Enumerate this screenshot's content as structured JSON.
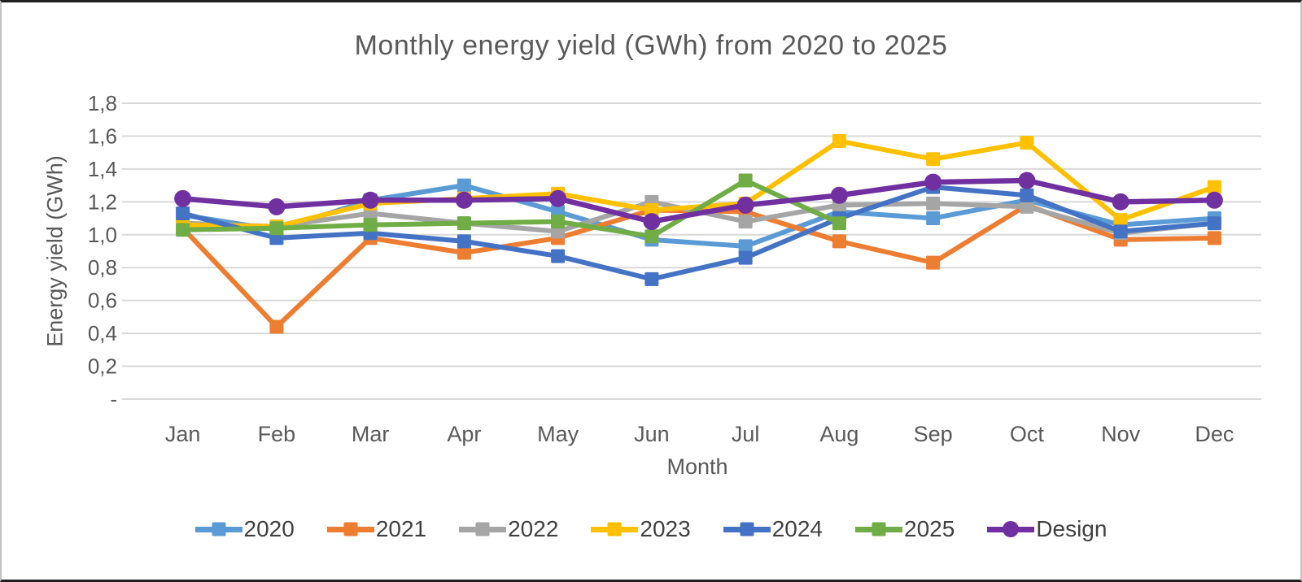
{
  "chart_data": {
    "type": "line",
    "title": "Monthly energy yield (GWh) from 2020 to 2025",
    "xlabel": "Month",
    "ylabel": "Energy yield (GWh)",
    "categories": [
      "Jan",
      "Feb",
      "Mar",
      "Apr",
      "May",
      "Jun",
      "Jul",
      "Aug",
      "Sep",
      "Oct",
      "Nov",
      "Dec"
    ],
    "ylim": [
      0,
      1.8
    ],
    "y_tick_values": [
      1.8,
      1.6,
      1.4,
      1.2,
      1.0,
      0.8,
      0.6,
      0.4,
      0.2,
      0
    ],
    "y_tick_labels": [
      "1,8",
      "1,6",
      "1,4",
      "1,2",
      "1,0",
      "0,8",
      "0,6",
      "0,4",
      "0,2",
      "-"
    ],
    "grid": "horizontal",
    "gridline_color": "#D9D9D9",
    "text_color": "#595959",
    "legend_position": "bottom",
    "series": [
      {
        "name": "2020",
        "color": "#5B9BD5",
        "marker": "square",
        "values": [
          1.12,
          1.03,
          1.21,
          1.3,
          1.14,
          0.97,
          0.93,
          1.14,
          1.1,
          1.21,
          1.06,
          1.1
        ]
      },
      {
        "name": "2021",
        "color": "#ED7D31",
        "marker": "square",
        "values": [
          1.04,
          0.44,
          0.98,
          0.89,
          0.98,
          1.15,
          1.14,
          0.96,
          0.83,
          1.18,
          0.97,
          0.98
        ]
      },
      {
        "name": "2022",
        "color": "#A5A5A5",
        "marker": "square",
        "values": [
          1.07,
          1.05,
          1.13,
          1.07,
          1.02,
          1.2,
          1.08,
          1.18,
          1.19,
          1.17,
          1.01,
          1.07
        ]
      },
      {
        "name": "2023",
        "color": "#FFC000",
        "marker": "square",
        "values": [
          1.06,
          1.05,
          1.19,
          1.22,
          1.25,
          1.15,
          1.19,
          1.57,
          1.46,
          1.56,
          1.09,
          1.29
        ]
      },
      {
        "name": "2024",
        "color": "#4472C4",
        "marker": "square",
        "values": [
          1.13,
          0.98,
          1.01,
          0.96,
          0.87,
          0.73,
          0.86,
          1.1,
          1.29,
          1.24,
          1.02,
          1.07
        ]
      },
      {
        "name": "2025",
        "color": "#70AD47",
        "marker": "square",
        "values": [
          1.03,
          1.04,
          1.06,
          1.07,
          1.08,
          0.99,
          1.33,
          1.07,
          null,
          null,
          null,
          null
        ]
      },
      {
        "name": "Design",
        "color": "#7030A0",
        "marker": "circle",
        "values": [
          1.22,
          1.17,
          1.21,
          1.21,
          1.22,
          1.08,
          1.18,
          1.24,
          1.32,
          1.33,
          1.2,
          1.21
        ]
      }
    ]
  }
}
